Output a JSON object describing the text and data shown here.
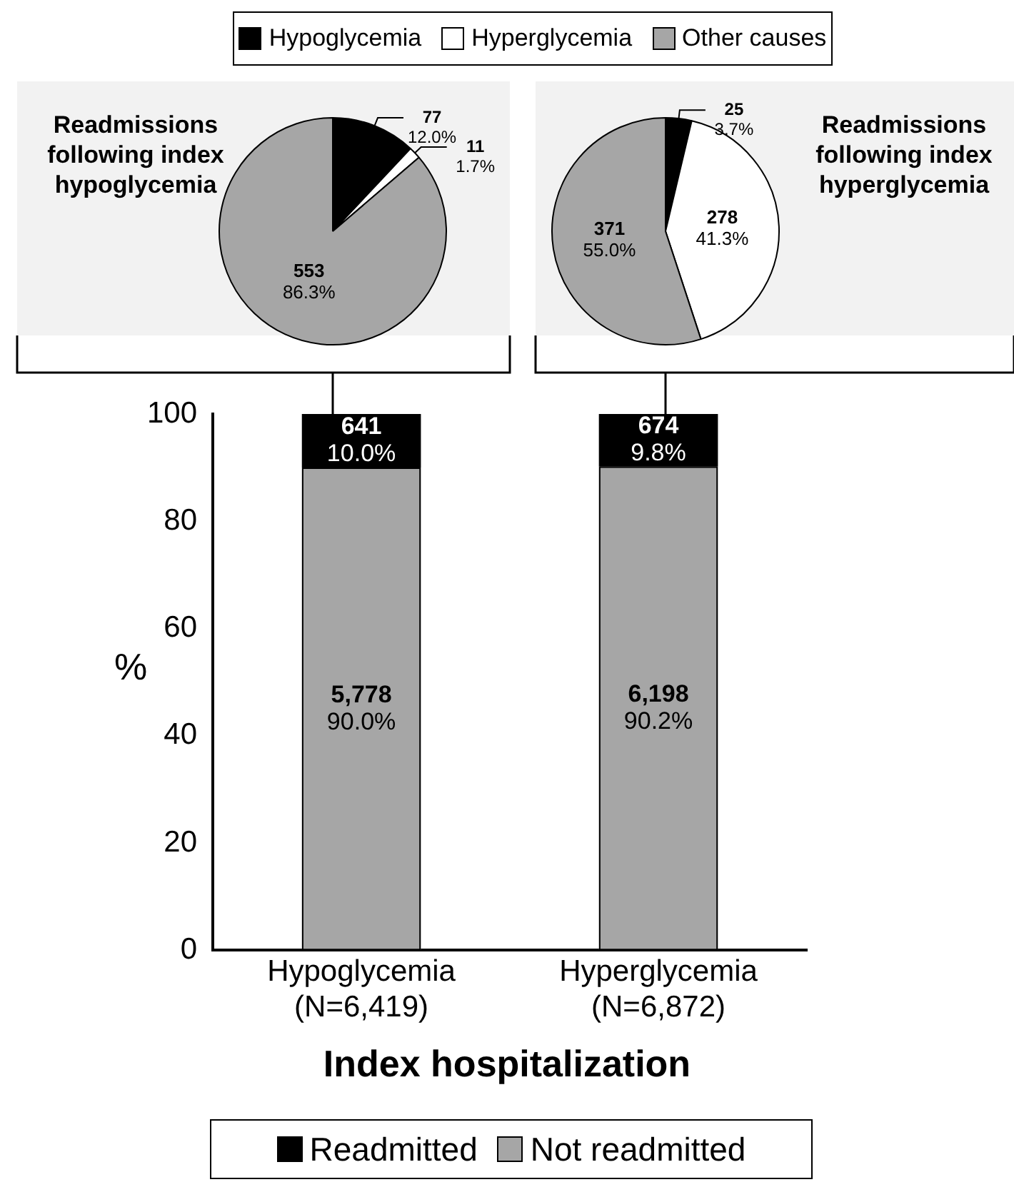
{
  "chart_data": [
    {
      "type": "pie",
      "categories": [
        "Hypoglycemia",
        "Hyperglycemia",
        "Other causes"
      ],
      "colors": [
        "#000000",
        "#ffffff",
        "#a6a6a6"
      ],
      "legend": "top",
      "series": [
        {
          "name": "Readmissions following index hypoglycemia",
          "values": [
            77,
            11,
            553
          ],
          "value_labels": [
            "77\n12.0%",
            "11\n1.7%",
            "553\n86.3%"
          ]
        },
        {
          "name": "Readmissions following index hyperglycemia",
          "values": [
            25,
            278,
            371
          ],
          "value_labels": [
            "25\n3.7%",
            "278\n41.3%",
            "371\n55.0%"
          ]
        }
      ]
    },
    {
      "type": "bar",
      "stacked": true,
      "categories": [
        "Hypoglycemia\n(N=6,419)",
        "Hyperglycemia\n(N=6,872)"
      ],
      "xlabel": "Index hospitalization",
      "ylabel": "%",
      "ylim": [
        0,
        100
      ],
      "yticks": [
        0,
        20,
        40,
        60,
        80,
        100
      ],
      "grid": false,
      "legend": "bottom",
      "series": [
        {
          "name": "Not readmitted",
          "color": "#a6a6a6",
          "values": [
            90.0,
            90.2
          ],
          "value_labels": [
            "5,778\n90.0%",
            "6,198\n90.2%"
          ]
        },
        {
          "name": "Readmitted",
          "color": "#000000",
          "values": [
            10.0,
            9.8
          ],
          "value_labels": [
            "641\n10.0%",
            "674\n9.8%"
          ]
        }
      ]
    }
  ]
}
